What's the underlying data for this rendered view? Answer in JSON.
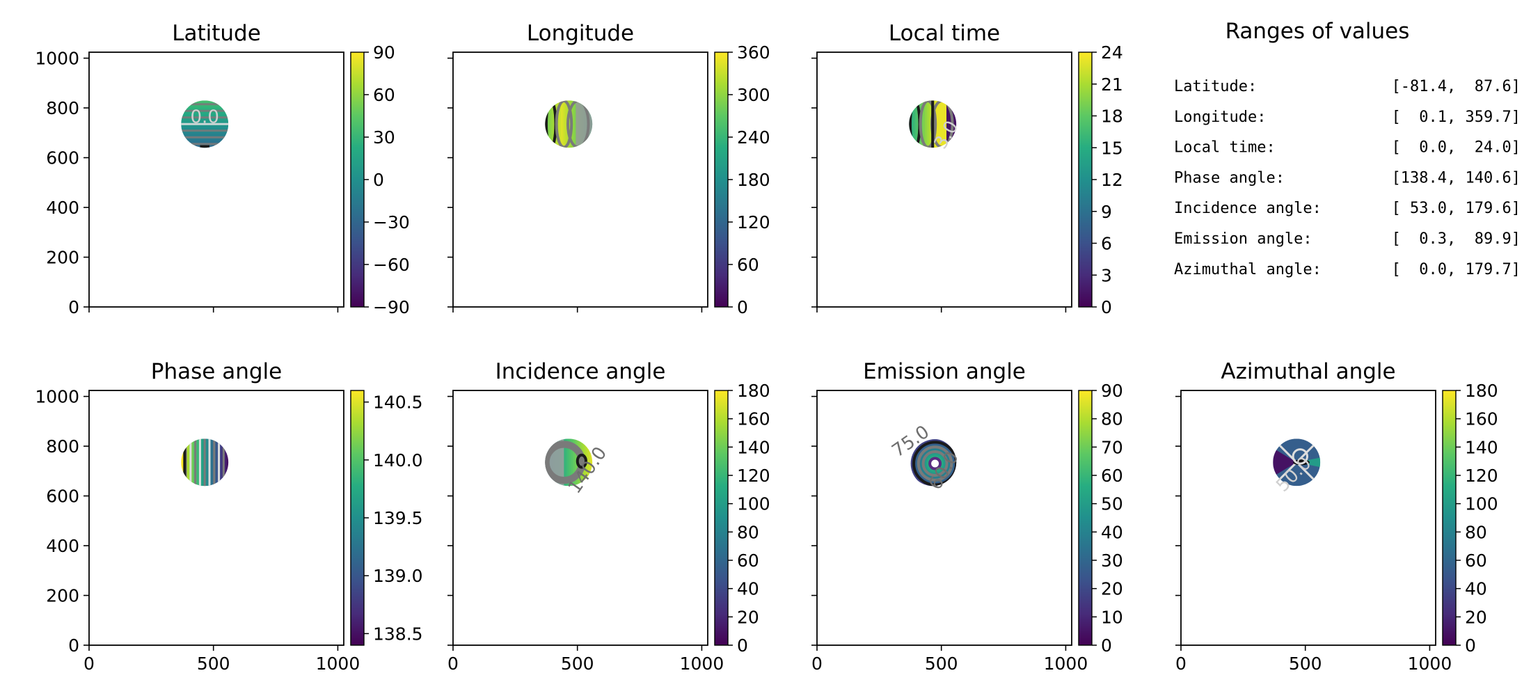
{
  "palette": {
    "viridis": [
      "#440154",
      "#472c7a",
      "#3b518b",
      "#2c718e",
      "#21908d",
      "#27ad81",
      "#5cc863",
      "#aadc32",
      "#fde725"
    ],
    "contour_dark": "#1a1a1a",
    "contour_mid": "#7a7a7a",
    "contour_light": "#dddddd"
  },
  "ranges_panel": {
    "title": "Ranges of values",
    "rows": [
      {
        "label": "Latitude:",
        "value": "[-81.4,  87.6]"
      },
      {
        "label": "Longitude:",
        "value": "[  0.1, 359.7]"
      },
      {
        "label": "Local time:",
        "value": "[  0.0,  24.0]"
      },
      {
        "label": "Phase angle:",
        "value": "[138.4, 140.6]"
      },
      {
        "label": "Incidence angle:",
        "value": "[ 53.0, 179.6]"
      },
      {
        "label": "Emission angle:",
        "value": "[  0.3,  89.9]"
      },
      {
        "label": "Azimuthal angle:",
        "value": "[  0.0, 179.7]"
      }
    ]
  },
  "chart_data": [
    {
      "type": "heatmap",
      "title": "Latitude",
      "xlim": [
        0,
        1024
      ],
      "ylim": [
        0,
        1024
      ],
      "xticks": [
        0,
        500,
        1000
      ],
      "yticks": [
        0,
        200,
        400,
        600,
        800,
        1000
      ],
      "show_x_tick_labels": false,
      "show_y_tick_labels": true,
      "disk": {
        "cx": 465,
        "cy": 735,
        "r": 95
      },
      "pattern": "horizontal",
      "colorbar": {
        "min": -90,
        "max": 90,
        "ticks": [
          -90,
          -60,
          -30,
          0,
          30,
          60,
          90
        ],
        "tick_labels": [
          "−90",
          "−60",
          "−30",
          "0",
          "30",
          "60",
          "90"
        ]
      },
      "contour_labels": [
        {
          "text": "0.0",
          "x": 465,
          "y": 740,
          "rotation": 0,
          "shade": "light"
        }
      ]
    },
    {
      "type": "heatmap",
      "title": "Longitude",
      "xlim": [
        0,
        1024
      ],
      "ylim": [
        0,
        1024
      ],
      "xticks": [
        0,
        500,
        1000
      ],
      "yticks": [
        0,
        200,
        400,
        600,
        800,
        1000
      ],
      "show_x_tick_labels": false,
      "show_y_tick_labels": false,
      "disk": {
        "cx": 465,
        "cy": 735,
        "r": 95
      },
      "pattern": "vertical",
      "colorbar": {
        "min": 0,
        "max": 360,
        "ticks": [
          0,
          60,
          120,
          180,
          240,
          300,
          360
        ],
        "tick_labels": [
          "0",
          "60",
          "120",
          "180",
          "240",
          "300",
          "360"
        ]
      },
      "contour_labels": []
    },
    {
      "type": "heatmap",
      "title": "Local time",
      "xlim": [
        0,
        1024
      ],
      "ylim": [
        0,
        1024
      ],
      "xticks": [
        0,
        500,
        1000
      ],
      "yticks": [
        0,
        200,
        400,
        600,
        800,
        1000
      ],
      "show_x_tick_labels": false,
      "show_y_tick_labels": false,
      "disk": {
        "cx": 465,
        "cy": 735,
        "r": 95
      },
      "pattern": "vertical-day",
      "colorbar": {
        "min": 0,
        "max": 24,
        "ticks": [
          0,
          3,
          6,
          9,
          12,
          15,
          18,
          21,
          24
        ],
        "tick_labels": [
          "0",
          "3",
          "6",
          "9",
          "12",
          "15",
          "18",
          "21",
          "24"
        ]
      },
      "contour_labels": [
        {
          "text": "3.0",
          "x": 540,
          "y": 680,
          "rotation": -60,
          "shade": "light"
        }
      ]
    },
    {
      "type": "heatmap",
      "title": "Phase angle",
      "xlim": [
        0,
        1024
      ],
      "ylim": [
        0,
        1024
      ],
      "xticks": [
        0,
        500,
        1000
      ],
      "yticks": [
        0,
        200,
        400,
        600,
        800,
        1000
      ],
      "show_x_tick_labels": true,
      "show_y_tick_labels": true,
      "disk": {
        "cx": 465,
        "cy": 735,
        "r": 95
      },
      "pattern": "stripes",
      "colorbar": {
        "min": 138.4,
        "max": 140.6,
        "ticks": [
          138.5,
          139.0,
          139.5,
          140.0,
          140.5
        ],
        "tick_labels": [
          "138.5",
          "139.0",
          "139.5",
          "140.0",
          "140.5"
        ]
      },
      "contour_labels": []
    },
    {
      "type": "heatmap",
      "title": "Incidence angle",
      "xlim": [
        0,
        1024
      ],
      "ylim": [
        0,
        1024
      ],
      "xticks": [
        0,
        500,
        1000
      ],
      "yticks": [
        0,
        200,
        400,
        600,
        800,
        1000
      ],
      "show_x_tick_labels": true,
      "show_y_tick_labels": false,
      "disk": {
        "cx": 465,
        "cy": 735,
        "r": 95
      },
      "pattern": "incidence",
      "colorbar": {
        "min": 0,
        "max": 180,
        "ticks": [
          0,
          20,
          40,
          60,
          80,
          100,
          120,
          140,
          160,
          180
        ],
        "tick_labels": [
          "0",
          "20",
          "40",
          "60",
          "80",
          "100",
          "120",
          "140",
          "160",
          "180"
        ]
      },
      "contour_labels": [
        {
          "text": "140.0",
          "x": 560,
          "y": 690,
          "rotation": -55,
          "shade": "mid"
        }
      ]
    },
    {
      "type": "heatmap",
      "title": "Emission angle",
      "xlim": [
        0,
        1024
      ],
      "ylim": [
        0,
        1024
      ],
      "xticks": [
        0,
        500,
        1000
      ],
      "yticks": [
        0,
        200,
        400,
        600,
        800,
        1000
      ],
      "show_x_tick_labels": true,
      "show_y_tick_labels": false,
      "disk": {
        "cx": 465,
        "cy": 735,
        "r": 95
      },
      "pattern": "radial",
      "colorbar": {
        "min": 0,
        "max": 90,
        "ticks": [
          0,
          10,
          20,
          30,
          40,
          50,
          60,
          70,
          80,
          90
        ],
        "tick_labels": [
          "0",
          "10",
          "20",
          "30",
          "40",
          "50",
          "60",
          "70",
          "80",
          "90"
        ]
      },
      "contour_labels": [
        {
          "text": "75.0",
          "x": 390,
          "y": 800,
          "rotation": -35,
          "shade": "mid"
        },
        {
          "text": "60.0",
          "x": 530,
          "y": 690,
          "rotation": -60,
          "shade": "mid"
        }
      ]
    },
    {
      "type": "heatmap",
      "title": "Azimuthal angle",
      "xlim": [
        0,
        1024
      ],
      "ylim": [
        0,
        1024
      ],
      "xticks": [
        0,
        500,
        1000
      ],
      "yticks": [
        0,
        200,
        400,
        600,
        800,
        1000
      ],
      "show_x_tick_labels": true,
      "show_y_tick_labels": false,
      "disk": {
        "cx": 465,
        "cy": 735,
        "r": 95
      },
      "pattern": "azimuth",
      "colorbar": {
        "min": 0,
        "max": 180,
        "ticks": [
          0,
          20,
          40,
          60,
          80,
          100,
          120,
          140,
          160,
          180
        ],
        "tick_labels": [
          "0",
          "20",
          "40",
          "60",
          "80",
          "100",
          "120",
          "140",
          "160",
          "180"
        ]
      },
      "contour_labels": [
        {
          "text": "50.0",
          "x": 470,
          "y": 670,
          "rotation": -45,
          "shade": "light"
        }
      ]
    }
  ]
}
